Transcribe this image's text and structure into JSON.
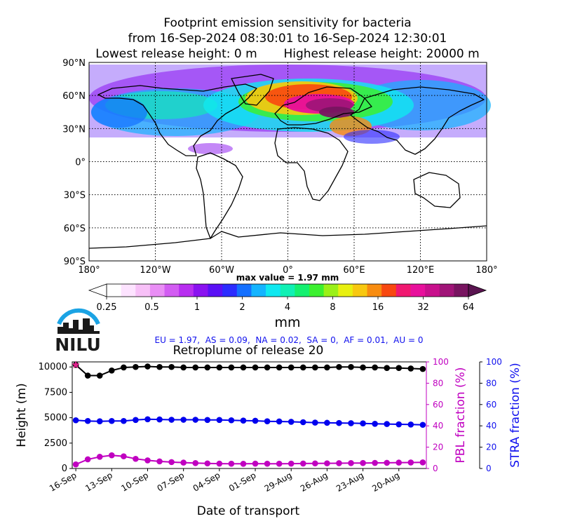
{
  "title": {
    "line1": "Footprint emission sensitivity for bacteria",
    "line2": "from 16-Sep-2024 08:30:01 to 16-Sep-2024 12:30:01",
    "line3": "Lowest release height: 0 m       Highest release height: 20000 m"
  },
  "map": {
    "lat_ticks": [
      "90°N",
      "60°N",
      "30°N",
      "0°",
      "30°S",
      "60°S",
      "90°S"
    ],
    "lon_ticks": [
      "180°",
      "120°W",
      "60°W",
      "0°",
      "60°E",
      "120°E",
      "180°"
    ],
    "max_value_label": "max value = 1.97 mm"
  },
  "colorbar": {
    "ticks": [
      "0.25",
      "0.5",
      "1",
      "2",
      "4",
      "8",
      "16",
      "32",
      "64"
    ],
    "unit": "mm",
    "colors": [
      "#ffffff",
      "#fde3ff",
      "#f7c0f7",
      "#e98ef5",
      "#d25cf2",
      "#b82ef0",
      "#8a12f0",
      "#5a10f5",
      "#2c2cff",
      "#1470ff",
      "#14b4ff",
      "#10e8f0",
      "#10f0b4",
      "#14f070",
      "#3cf030",
      "#9af018",
      "#e8f010",
      "#f8c810",
      "#f88c10",
      "#f84810",
      "#f01870",
      "#e8109c",
      "#c8108c",
      "#a01478",
      "#781460"
    ]
  },
  "logo": {
    "text": "NILU"
  },
  "region_fractions": "EU = 1.97,  AS = 0.09,  NA = 0.02,  SA = 0,  AF = 0.01,  AU = 0",
  "chart_data": {
    "type": "line",
    "title": "Retroplume of release 20",
    "xlabel": "Date of transport",
    "ylabel": "Height (m)",
    "y2label": "PBL fraction (%)",
    "y3label": "STRA fraction (%)",
    "x_tick_labels": [
      "16-Sep",
      "13-Sep",
      "10-Sep",
      "07-Sep",
      "04-Sep",
      "01-Sep",
      "29-Aug",
      "26-Aug",
      "23-Aug",
      "20-Aug"
    ],
    "y_ticks": [
      "0",
      "2500",
      "5000",
      "7500",
      "10000"
    ],
    "y2_ticks": [
      "0",
      "20",
      "40",
      "60",
      "80",
      "100"
    ],
    "y3_ticks": [
      "0",
      "20",
      "40",
      "60",
      "80",
      "100"
    ],
    "ylim": [
      0,
      10500
    ],
    "y2lim": [
      0,
      100
    ],
    "x_days_before_release": [
      0,
      1,
      2,
      3,
      4,
      5,
      6,
      7,
      8,
      9,
      10,
      11,
      12,
      13,
      14,
      15,
      16,
      17,
      18,
      19,
      20,
      21,
      22,
      23,
      24,
      25,
      26,
      27,
      28,
      29
    ],
    "series": [
      {
        "color": "#000000",
        "axis": "left",
        "values": [
          10200,
          9150,
          9150,
          9650,
          9950,
          10000,
          10050,
          10000,
          10000,
          9950,
          9950,
          9950,
          9950,
          9950,
          9950,
          9950,
          9950,
          9950,
          9950,
          9950,
          9950,
          9950,
          10000,
          10000,
          9950,
          9950,
          9900,
          9900,
          9850,
          9800
        ]
      },
      {
        "color": "#0000ee",
        "axis": "left",
        "values": [
          4750,
          4680,
          4650,
          4680,
          4680,
          4780,
          4850,
          4830,
          4800,
          4800,
          4800,
          4780,
          4780,
          4750,
          4720,
          4700,
          4650,
          4630,
          4600,
          4560,
          4520,
          4500,
          4480,
          4460,
          4440,
          4400,
          4380,
          4350,
          4330,
          4300
        ]
      },
      {
        "color": "#c000c0",
        "axis": "left",
        "values": [
          400,
          900,
          1150,
          1300,
          1200,
          950,
          800,
          700,
          630,
          580,
          530,
          500,
          480,
          470,
          460,
          480,
          470,
          470,
          480,
          490,
          500,
          510,
          520,
          530,
          540,
          550,
          560,
          580,
          590,
          600
        ]
      }
    ]
  }
}
